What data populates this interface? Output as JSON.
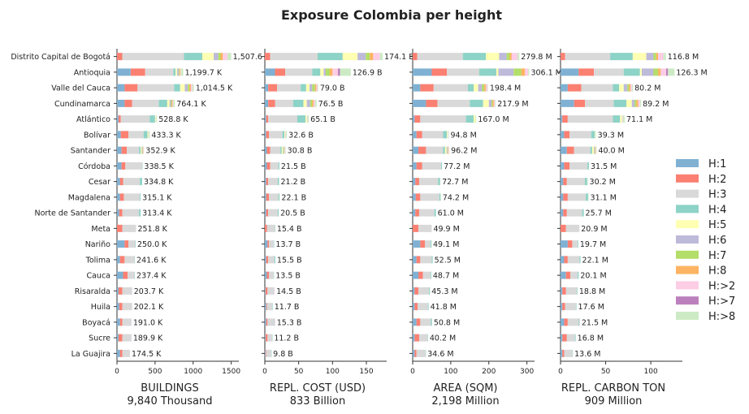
{
  "title": "Exposure Colombia per height",
  "categories": [
    "Distrito Capital de Bogotá",
    "Antioquia",
    "Valle del Cauca",
    "Cundinamarca",
    "Atlántico",
    "Bolívar",
    "Santander",
    "Córdoba",
    "Cesar",
    "Magdalena",
    "Norte de Santander",
    "Meta",
    "Nariño",
    "Tolima",
    "Cauca",
    "Risaralda",
    "Huila",
    "Boyacá",
    "Sucre",
    "La Guajira"
  ],
  "legend": [
    {
      "label": "H:1",
      "color": "#80b1d3"
    },
    {
      "label": "H:2",
      "color": "#fb8072"
    },
    {
      "label": "H:3",
      "color": "#d9d9d9"
    },
    {
      "label": "H:4",
      "color": "#8dd3c7"
    },
    {
      "label": "H:5",
      "color": "#ffffb3"
    },
    {
      "label": "H:6",
      "color": "#bebada"
    },
    {
      "label": "H:7",
      "color": "#b3de69"
    },
    {
      "label": "H:8",
      "color": "#fdb462"
    },
    {
      "label": "H:>2",
      "color": "#fccde5"
    },
    {
      "label": "H:>7",
      "color": "#bc80bd"
    },
    {
      "label": "H:>8",
      "color": "#ccebc5"
    }
  ],
  "chart_data": [
    {
      "type": "bar",
      "orientation": "horizontal",
      "stacked": true,
      "xlabel": "BUILDINGS",
      "xlabel2": "9,840 Thousand",
      "xlim": [
        0,
        1600
      ],
      "xticks": [
        0,
        500,
        1000,
        1500
      ],
      "totals_labels": [
        "1,507.6 K",
        "1,199.7 K",
        "1,014.5 K",
        "764.1 K",
        "528.8 K",
        "433.3 K",
        "352.9 K",
        "338.5 K",
        "334.8 K",
        "315.1 K",
        "313.4 K",
        "251.8 K",
        "250.0 K",
        "241.6 K",
        "237.4 K",
        "203.7 K",
        "202.1 K",
        "191.0 K",
        "189.9 K",
        "174.5 K"
      ],
      "segments": [
        [
          0,
          70,
          810,
          240,
          150,
          60,
          30,
          30,
          60,
          0,
          50
        ],
        [
          180,
          190,
          370,
          30,
          20,
          20,
          10,
          10,
          10,
          0,
          30
        ],
        [
          100,
          170,
          480,
          80,
          60,
          40,
          20,
          20,
          20,
          0,
          20
        ],
        [
          100,
          100,
          350,
          110,
          30,
          20,
          10,
          10,
          10,
          0,
          20
        ],
        [
          20,
          30,
          380,
          70,
          10,
          0,
          0,
          0,
          5,
          0,
          10
        ],
        [
          50,
          100,
          200,
          50,
          10,
          0,
          0,
          0,
          5,
          0,
          15
        ],
        [
          60,
          70,
          160,
          20,
          15,
          10,
          5,
          5,
          5,
          0,
          5
        ],
        [
          60,
          50,
          220,
          5,
          0,
          0,
          0,
          0,
          0,
          0,
          0
        ],
        [
          40,
          40,
          220,
          30,
          0,
          0,
          0,
          0,
          0,
          0,
          0
        ],
        [
          40,
          50,
          210,
          10,
          0,
          0,
          0,
          0,
          0,
          0,
          0
        ],
        [
          30,
          40,
          220,
          20,
          0,
          0,
          0,
          0,
          0,
          0,
          0
        ],
        [
          0,
          70,
          180,
          0,
          0,
          0,
          0,
          0,
          0,
          0,
          0
        ],
        [
          100,
          50,
          90,
          5,
          0,
          0,
          0,
          0,
          0,
          0,
          0
        ],
        [
          40,
          60,
          130,
          5,
          0,
          0,
          0,
          0,
          0,
          0,
          0
        ],
        [
          80,
          60,
          90,
          5,
          0,
          0,
          0,
          0,
          0,
          0,
          0
        ],
        [
          20,
          50,
          120,
          5,
          0,
          0,
          0,
          0,
          5,
          0,
          0
        ],
        [
          30,
          40,
          120,
          5,
          0,
          0,
          0,
          0,
          5,
          0,
          0
        ],
        [
          40,
          30,
          110,
          5,
          0,
          0,
          0,
          0,
          5,
          0,
          0
        ],
        [
          20,
          50,
          110,
          5,
          0,
          0,
          0,
          0,
          5,
          0,
          0
        ],
        [
          40,
          30,
          100,
          0,
          0,
          0,
          0,
          0,
          0,
          0,
          0
        ]
      ]
    },
    {
      "type": "bar",
      "orientation": "horizontal",
      "stacked": true,
      "xlabel": "REPL. COST (USD)",
      "xlabel2": "833 Billion",
      "xlim": [
        0,
        180
      ],
      "xticks": [
        0,
        50,
        100,
        150
      ],
      "totals_labels": [
        "174.1 B",
        "126.9 B",
        "79.0 B",
        "76.5 B",
        "65.1 B",
        "32.6 B",
        "30.8 B",
        "21.5 B",
        "21.2 B",
        "22.1 B",
        "20.5 B",
        "15.4 B",
        "13.7 B",
        "15.5 B",
        "13.5 B",
        "14.5 B",
        "11.7 B",
        "15.3 B",
        "11.2 B",
        "9.8 B"
      ],
      "segments": [
        [
          0,
          8,
          70,
          37,
          22,
          12,
          6,
          5,
          10,
          0,
          4
        ],
        [
          15,
          15,
          40,
          12,
          5,
          3,
          6,
          4,
          8,
          3,
          16
        ],
        [
          5,
          13,
          35,
          8,
          5,
          4,
          4,
          2,
          2,
          0,
          1
        ],
        [
          5,
          10,
          27,
          15,
          5,
          5,
          3,
          2,
          2,
          0,
          2.5
        ],
        [
          2,
          3,
          43,
          12,
          2,
          0,
          0,
          0,
          1,
          0,
          2
        ],
        [
          2,
          4,
          20,
          3,
          1,
          0,
          0,
          0,
          1,
          0,
          1.6
        ],
        [
          3,
          5,
          15,
          2,
          2,
          1,
          1,
          0,
          1,
          0,
          0.8
        ],
        [
          3,
          5,
          12,
          1.5,
          0,
          0,
          0,
          0,
          0,
          0,
          0
        ],
        [
          2,
          3,
          14,
          2,
          0,
          0,
          0,
          0,
          0,
          0,
          0
        ],
        [
          2,
          4,
          14,
          1.5,
          0,
          0,
          0,
          0,
          0,
          0,
          0.6
        ],
        [
          2,
          3,
          14,
          1.5,
          0,
          0,
          0,
          0,
          0,
          0,
          0
        ],
        [
          0,
          3,
          12,
          0.4,
          0,
          0,
          0,
          0,
          0,
          0,
          0
        ],
        [
          4,
          2,
          7,
          0.7,
          0,
          0,
          0,
          0,
          0,
          0,
          0
        ],
        [
          2,
          3,
          9,
          1.5,
          0,
          0,
          0,
          0,
          0,
          0,
          0
        ],
        [
          3,
          3,
          7,
          0.5,
          0,
          0,
          0,
          0,
          0,
          0,
          0
        ],
        [
          1,
          3,
          9,
          0.5,
          0,
          0,
          0,
          0,
          1,
          0,
          0
        ],
        [
          2,
          1,
          8,
          0.7,
          0,
          0,
          0,
          0,
          0,
          0,
          0
        ],
        [
          2,
          2,
          9,
          1,
          0,
          0,
          0,
          0,
          1.3,
          0,
          0
        ],
        [
          1,
          3,
          7,
          0.2,
          0,
          0,
          0,
          0,
          0,
          0,
          0
        ],
        [
          1,
          1,
          7.5,
          0.3,
          0,
          0,
          0,
          0,
          0,
          0,
          0
        ]
      ]
    },
    {
      "type": "bar",
      "orientation": "horizontal",
      "stacked": true,
      "xlabel": "AREA (SQM)",
      "xlabel2": "2,198 Million",
      "xlim": [
        0,
        320
      ],
      "xticks": [
        0,
        100,
        200,
        300
      ],
      "totals_labels": [
        "279.8 M",
        "306.1 M",
        "198.4 M",
        "217.9 M",
        "167.0 M",
        "94.8 M",
        "96.2 M",
        "77.2 M",
        "72.7 M",
        "74.2 M",
        "61.0 M",
        "49.9 M",
        "49.1 M",
        "52.5 M",
        "48.7 M",
        "45.3 M",
        "41.8 M",
        "50.8 M",
        "40.2 M",
        "34.6 M"
      ],
      "segments": [
        [
          0,
          12,
          120,
          60,
          35,
          20,
          8,
          5,
          15,
          0,
          5
        ],
        [
          50,
          40,
          85,
          45,
          5,
          40,
          20,
          10,
          8,
          0,
          3
        ],
        [
          20,
          35,
          90,
          15,
          12,
          10,
          6,
          4,
          4,
          0,
          2
        ],
        [
          35,
          30,
          85,
          35,
          15,
          7,
          3,
          3,
          3,
          0,
          2
        ],
        [
          5,
          15,
          120,
          20,
          5,
          0,
          0,
          0,
          0,
          0,
          2
        ],
        [
          10,
          15,
          55,
          10,
          2,
          0,
          0,
          0,
          1,
          0,
          1.8
        ],
        [
          15,
          20,
          45,
          5,
          4,
          2,
          1,
          1,
          2,
          0,
          1.2
        ],
        [
          10,
          15,
          50,
          2,
          0,
          0,
          0,
          0,
          0,
          0,
          0
        ],
        [
          7,
          10,
          50,
          5,
          0,
          0,
          0,
          0,
          0,
          0,
          0.7
        ],
        [
          8,
          12,
          50,
          3,
          0,
          0,
          0,
          0,
          0,
          0,
          1.2
        ],
        [
          7,
          10,
          40,
          4,
          0,
          0,
          0,
          0,
          0,
          0,
          0
        ],
        [
          0,
          15,
          35,
          0,
          0,
          0,
          0,
          0,
          0,
          0,
          0
        ],
        [
          20,
          12,
          15,
          2,
          0,
          0,
          0,
          0,
          0,
          0,
          0.1
        ],
        [
          10,
          10,
          30,
          2.5,
          0,
          0,
          0,
          0,
          0,
          0,
          0
        ],
        [
          15,
          12,
          20,
          1.7,
          0,
          0,
          0,
          0,
          0,
          0,
          0
        ],
        [
          5,
          10,
          28,
          2,
          0,
          0,
          0,
          0,
          0,
          0,
          0.3
        ],
        [
          5,
          8,
          27,
          1.8,
          0,
          0,
          0,
          0,
          0,
          0,
          0
        ],
        [
          10,
          10,
          28,
          2.8,
          0,
          0,
          0,
          0,
          0,
          0,
          0
        ],
        [
          5,
          12,
          22,
          1.2,
          0,
          0,
          0,
          0,
          0,
          0,
          0
        ],
        [
          5,
          5,
          24,
          0.6,
          0,
          0,
          0,
          0,
          0,
          0,
          0
        ]
      ]
    },
    {
      "type": "bar",
      "orientation": "horizontal",
      "stacked": true,
      "xlabel": "REPL. CARBON TON",
      "xlabel2": "909 Million",
      "xlim": [
        0,
        135
      ],
      "xticks": [
        0,
        50,
        100
      ],
      "totals_labels": [
        "116.8 M",
        "126.3 M",
        "80.2 M",
        "89.2 M",
        "71.1 M",
        "39.3 M",
        "40.0 M",
        "31.5 M",
        "30.2 M",
        "31.1 M",
        "25.7 M",
        "20.9 M",
        "19.7 M",
        "22.1 M",
        "20.1 M",
        "18.8 M",
        "17.6 M",
        "21.5 M",
        "16.8 M",
        "13.6 M"
      ],
      "segments": [
        [
          0,
          5,
          50,
          25,
          15,
          8,
          3,
          2,
          6,
          0,
          2.8
        ],
        [
          20,
          17,
          33,
          18,
          2,
          13,
          5,
          3,
          6,
          2,
          7.3
        ],
        [
          8,
          15,
          35,
          7,
          5,
          4,
          2,
          1.5,
          1.5,
          0,
          1.2
        ],
        [
          15,
          12,
          32,
          14,
          6,
          3,
          2,
          2,
          2,
          0,
          1.2
        ],
        [
          2,
          6,
          50,
          8,
          2,
          0,
          0,
          0,
          1,
          0,
          2.1
        ],
        [
          4,
          6,
          24,
          4,
          0.5,
          0,
          0,
          0,
          0,
          0,
          0.8
        ],
        [
          7,
          8,
          18,
          2,
          2,
          1,
          0.5,
          0.5,
          0.5,
          0,
          0.5
        ],
        [
          4,
          6,
          20,
          1.5,
          0,
          0,
          0,
          0,
          0,
          0,
          0
        ],
        [
          3,
          4,
          20,
          2.5,
          0,
          0,
          0,
          0,
          0,
          0,
          0.7
        ],
        [
          3,
          5,
          20,
          2.5,
          0,
          0,
          0,
          0,
          0,
          0,
          0.6
        ],
        [
          3,
          4,
          17,
          1.7,
          0,
          0,
          0,
          0,
          0,
          0,
          0
        ],
        [
          0,
          6,
          14.9,
          0,
          0,
          0,
          0,
          0,
          0,
          0,
          0
        ],
        [
          8,
          5,
          6,
          0.7,
          0,
          0,
          0,
          0,
          0,
          0,
          0
        ],
        [
          4,
          4,
          13,
          1.1,
          0,
          0,
          0,
          0,
          0,
          0,
          0
        ],
        [
          6,
          5,
          8,
          1.1,
          0,
          0,
          0,
          0,
          0,
          0,
          0
        ],
        [
          2,
          4,
          12,
          0.6,
          0,
          0,
          0,
          0,
          0,
          0,
          0.2
        ],
        [
          2,
          3,
          12,
          0.6,
          0,
          0,
          0,
          0,
          0,
          0,
          0
        ],
        [
          4,
          4,
          12,
          1,
          0,
          0,
          0,
          0,
          0.5,
          0,
          0
        ],
        [
          2,
          5,
          9,
          0.8,
          0,
          0,
          0,
          0,
          0,
          0,
          0
        ],
        [
          2,
          2,
          9.3,
          0.3,
          0,
          0,
          0,
          0,
          0,
          0,
          0
        ]
      ]
    }
  ]
}
